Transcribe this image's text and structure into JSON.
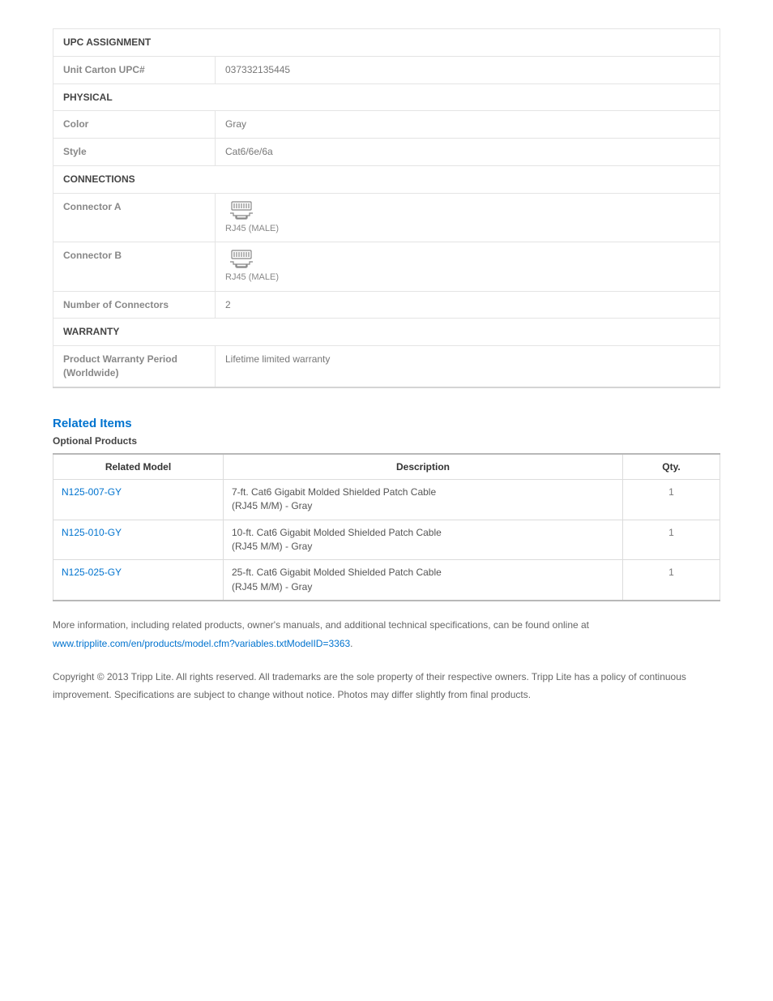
{
  "specs": {
    "sections": [
      {
        "title": "UPC ASSIGNMENT",
        "rows": [
          {
            "label": "Unit Carton UPC#",
            "value": "037332135445"
          }
        ]
      },
      {
        "title": "PHYSICAL",
        "rows": [
          {
            "label": "Color",
            "value": "Gray"
          },
          {
            "label": "Style",
            "value": "Cat6/6e/6a"
          }
        ]
      },
      {
        "title": "CONNECTIONS",
        "rows": [
          {
            "label": "Connector A",
            "connector": "RJ45 (MALE)"
          },
          {
            "label": "Connector B",
            "connector": "RJ45 (MALE)"
          },
          {
            "label": "Number of Connectors",
            "value": "2"
          }
        ]
      },
      {
        "title": "WARRANTY",
        "rows": [
          {
            "label": "Product Warranty Period (Worldwide)",
            "value": "Lifetime limited warranty"
          }
        ]
      }
    ]
  },
  "related": {
    "heading": "Related Items",
    "subheading": "Optional Products",
    "columns": {
      "model": "Related Model",
      "desc": "Description",
      "qty": "Qty."
    },
    "rows": [
      {
        "model": "N125-007-GY",
        "desc": "7-ft. Cat6 Gigabit Molded Shielded Patch Cable\n(RJ45 M/M) - Gray",
        "qty": "1"
      },
      {
        "model": "N125-010-GY",
        "desc": "10-ft. Cat6 Gigabit Molded Shielded Patch Cable\n(RJ45 M/M) - Gray",
        "qty": "1"
      },
      {
        "model": "N125-025-GY",
        "desc": "25-ft. Cat6 Gigabit Molded Shielded Patch Cable\n(RJ45 M/M) - Gray",
        "qty": "1"
      }
    ]
  },
  "info": {
    "lead": "More information, including related products, owner's manuals, and additional technical specifications, can be found online at",
    "link_text": "www.tripplite.com/en/products/model.cfm?variables.txtModelID=3363",
    "trail": "."
  },
  "copyright": "Copyright © 2013 Tripp Lite. All rights reserved. All trademarks are the sole property of their respective owners. Tripp Lite has a policy of continuous improvement. Specifications are subject to change without notice. Photos may differ slightly from final products.",
  "colors": {
    "link": "#0073cf",
    "text_muted": "#777777",
    "border": "#e4e4e4",
    "table_border_heavy": "#b8b8b8"
  }
}
